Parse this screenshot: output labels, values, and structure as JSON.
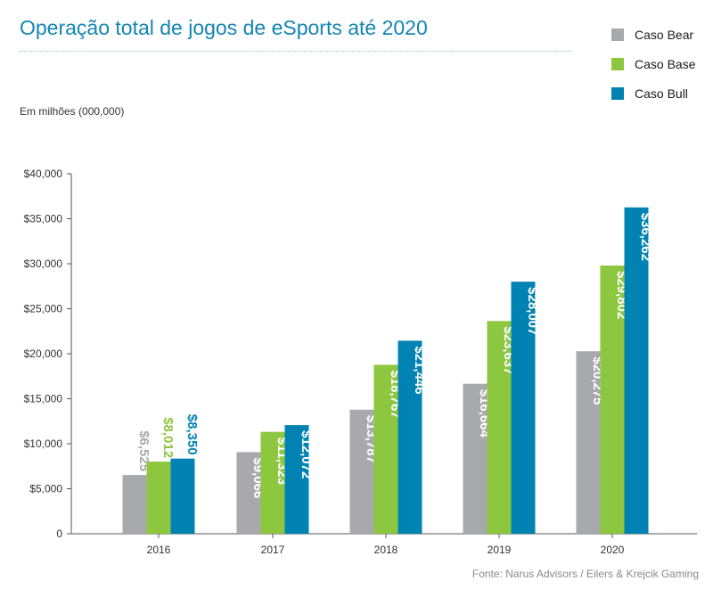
{
  "chart_data": {
    "type": "bar",
    "title": "Operação total de jogos de eSports até 2020",
    "unit_label": "Em milhões (000,000)",
    "source": "Fonte: Narus Advisors / Eilers & Krejcik Gaming",
    "categories": [
      "2016",
      "2017",
      "2018",
      "2019",
      "2020"
    ],
    "y_ticks": [
      {
        "value": 0,
        "label": "0"
      },
      {
        "value": 5000,
        "label": "$5,000"
      },
      {
        "value": 10000,
        "label": "$10,000"
      },
      {
        "value": 15000,
        "label": "$15,000"
      },
      {
        "value": 20000,
        "label": "$20,000"
      },
      {
        "value": 25000,
        "label": "$25,000"
      },
      {
        "value": 30000,
        "label": "$30,000"
      },
      {
        "value": 35000,
        "label": "$35,000"
      },
      {
        "value": 40000,
        "label": "$40,000"
      }
    ],
    "ylim": [
      0,
      40000
    ],
    "grid": false,
    "legend_position": "top-right",
    "series": [
      {
        "name": "Caso Bear",
        "color": "#a7a9ac",
        "values": [
          6525,
          9066,
          13787,
          16664,
          20275
        ],
        "labels": [
          "$6,525",
          "$9,066",
          "$13,787",
          "$16,664",
          "$20,275"
        ],
        "label_colors": [
          "#a7a9ac",
          "#ffffff",
          "#ffffff",
          "#ffffff",
          "#ffffff"
        ]
      },
      {
        "name": "Caso Base",
        "color": "#8dc63f",
        "values": [
          8012,
          11323,
          18767,
          23637,
          29802
        ],
        "labels": [
          "$8,012",
          "$11,323",
          "$18,767",
          "$23,637",
          "$29,802"
        ],
        "label_colors": [
          "#8dc63f",
          "#ffffff",
          "#ffffff",
          "#ffffff",
          "#ffffff"
        ]
      },
      {
        "name": "Caso Bull",
        "color": "#0083b3",
        "values": [
          8350,
          12072,
          21446,
          28007,
          36262
        ],
        "labels": [
          "$8,350",
          "$12,072",
          "$21,446",
          "$28,007",
          "$36,262"
        ],
        "label_colors": [
          "#0083b3",
          "#ffffff",
          "#ffffff",
          "#ffffff",
          "#ffffff"
        ]
      }
    ]
  }
}
